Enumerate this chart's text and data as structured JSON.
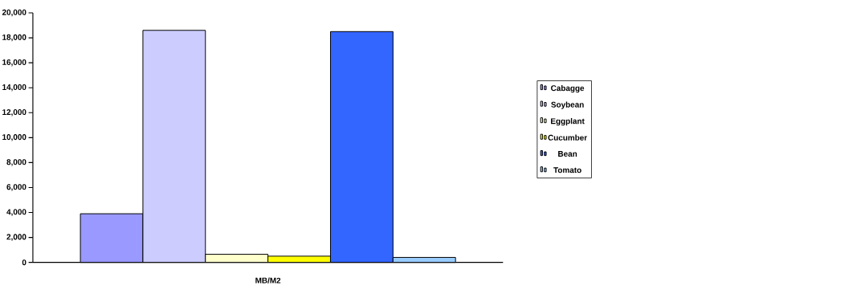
{
  "chart_data": {
    "type": "bar",
    "categories": [
      "MB/M2"
    ],
    "series": [
      {
        "name": "Cabagge",
        "color": "#9999ff",
        "values": [
          3900
        ]
      },
      {
        "name": "Soybean",
        "color": "#ccccff",
        "values": [
          18600
        ]
      },
      {
        "name": "Eggplant",
        "color": "#ffffcc",
        "values": [
          650
        ]
      },
      {
        "name": "Cucumber",
        "color": "#ffff00",
        "values": [
          500
        ]
      },
      {
        "name": "Bean",
        "color": "#3366ff",
        "values": [
          18500
        ]
      },
      {
        "name": "Tomato",
        "color": "#99ccff",
        "values": [
          400
        ]
      }
    ],
    "ylim": [
      0,
      20000
    ],
    "yticks": [
      {
        "value": 0,
        "label": "0"
      },
      {
        "value": 2000,
        "label": "2,000"
      },
      {
        "value": 4000,
        "label": "4,000"
      },
      {
        "value": 6000,
        "label": "6,000"
      },
      {
        "value": 8000,
        "label": "8,000"
      },
      {
        "value": 10000,
        "label": "10,000"
      },
      {
        "value": 12000,
        "label": "12,000"
      },
      {
        "value": 14000,
        "label": "14,000"
      },
      {
        "value": 16000,
        "label": "16,000"
      },
      {
        "value": 18000,
        "label": "18,000"
      },
      {
        "value": 20000,
        "label": "20,000"
      }
    ],
    "grid": false,
    "legend": "right"
  }
}
